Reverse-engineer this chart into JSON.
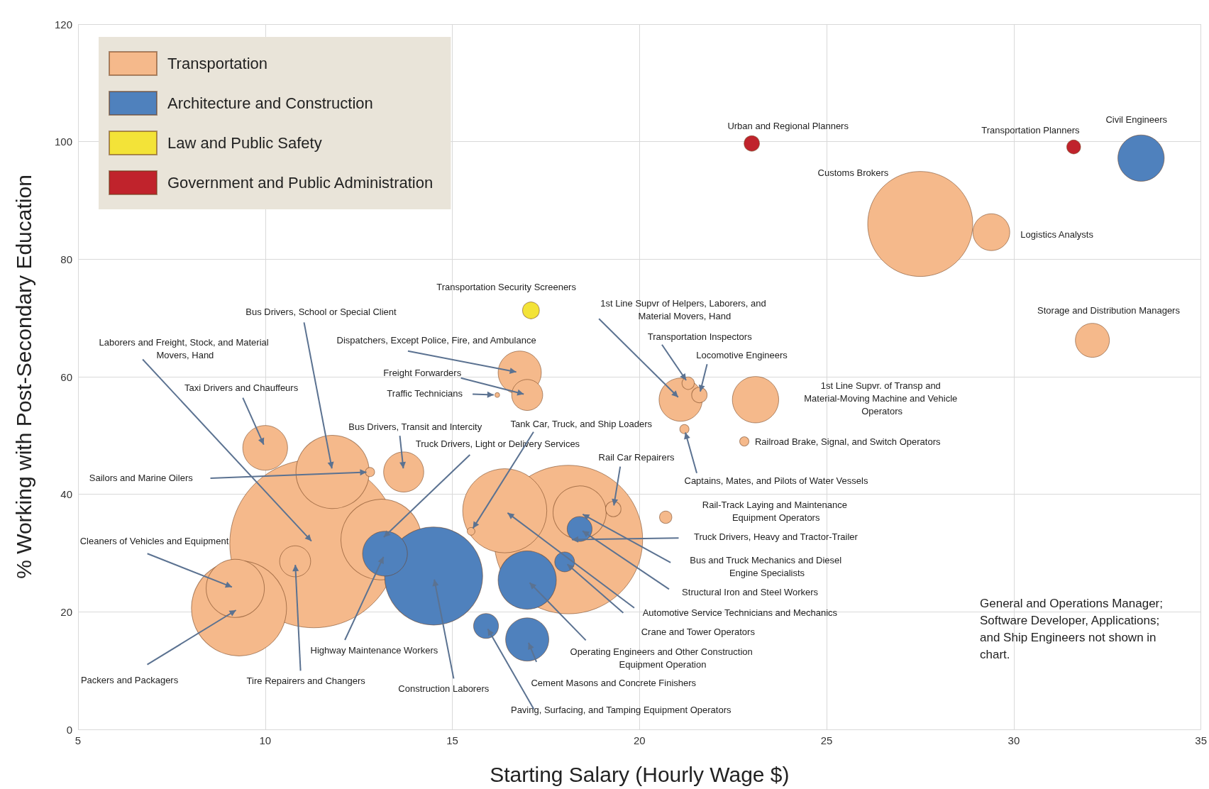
{
  "chart_data": {
    "type": "bubble",
    "xlabel": "Starting Salary (Hourly Wage $)",
    "ylabel": "% Working with Post-Secondary Education",
    "xlim": [
      5,
      35
    ],
    "xticks": [
      5,
      10,
      15,
      20,
      25,
      30,
      35
    ],
    "ylim": [
      0,
      120
    ],
    "yticks": [
      0,
      20,
      40,
      60,
      80,
      100,
      120
    ],
    "grid": true,
    "legend": "top left",
    "series": [
      {
        "name": "Transportation",
        "color": "#f5b98b",
        "x": [
          11.3,
          18.1,
          27.5,
          9.3,
          16.4,
          13.1,
          11.8,
          9.2,
          18.4,
          23.1,
          10.0,
          16.8,
          21.1,
          13.7,
          29.4,
          32.1,
          17.0,
          10.8,
          21.6,
          19.3,
          21.3,
          20.7,
          21.2,
          22.8,
          12.8,
          15.5,
          16.2
        ],
        "values": [
          31.6,
          32.3,
          86.0,
          20.6,
          37.2,
          32.3,
          43.8,
          24.0,
          36.9,
          56.1,
          47.9,
          60.7,
          56.1,
          43.8,
          84.6,
          66.2,
          56.9,
          28.6,
          56.9,
          37.5,
          58.9,
          36.1,
          51.1,
          49.0,
          43.8,
          33.7,
          56.9
        ],
        "sizes": [
          1,
          0.78,
          0.39,
          0.32,
          0.25,
          0.23,
          0.19,
          0.12,
          0.1,
          0.076,
          0.071,
          0.066,
          0.066,
          0.057,
          0.048,
          0.041,
          0.034,
          0.034,
          0.0084,
          0.0084,
          0.0054,
          0.0054,
          0.003,
          0.003,
          0.003,
          0.0021,
          0.0008
        ]
      },
      {
        "name": "Architecture and Construction",
        "color": "#4f81bd",
        "x": [
          14.5,
          17.0,
          33.4,
          13.2,
          17.0,
          18.4,
          15.9,
          18.0
        ],
        "values": [
          26.1,
          25.4,
          97.2,
          29.9,
          15.3,
          34.1,
          17.6,
          28.5
        ],
        "sizes": [
          0.34,
          0.12,
          0.076,
          0.071,
          0.066,
          0.022,
          0.022,
          0.014
        ]
      },
      {
        "name": "Law and Public Safety",
        "color": "#f3e338",
        "x": [
          17.1
        ],
        "values": [
          71.3
        ],
        "sizes": [
          0.01
        ]
      },
      {
        "name": "Government and Public Administration",
        "color": "#c0232c",
        "x": [
          23.0,
          31.6
        ],
        "values": [
          99.7,
          99.1
        ],
        "sizes": [
          0.0084,
          0.0068
        ]
      }
    ],
    "annotations": [
      {
        "text": "Urban and Regional Planners",
        "x": 23.0,
        "y": 99.7
      },
      {
        "text": "Transportation Planners",
        "x": 31.6,
        "y": 99.1
      },
      "Civil Engineers",
      "Customs Brokers",
      "Logistics Analysts",
      {
        "text": "Storage and Distribution Managers",
        "x": 32.1,
        "y": 66.2
      },
      {
        "text": "Transportation Security Screeners",
        "x": 17.1,
        "y": 71.3
      },
      {
        "text": "1st Line Supvr of Helpers, Laborers, and Material Movers, Hand",
        "x": 21.1,
        "y": 56.1
      },
      {
        "text": "Transportation Inspectors",
        "x": 21.3,
        "y": 58.9
      },
      {
        "text": "Locomotive Engineers",
        "x": 21.6,
        "y": 56.9
      },
      "1st Line Supvr. of Transp and Material-Moving Machine and Vehicle Operators",
      {
        "text": "Railroad Brake, Signal, and Switch Operators",
        "x": 22.8,
        "y": 49.0
      },
      {
        "text": "Captains, Mates, and Pilots of Water Vessels",
        "x": 21.2,
        "y": 51.1
      },
      "Rail-Track Laying and Maintenance Equipment Operators",
      "Truck Drivers, Heavy and Tractor-Trailer",
      "Bus and Truck Mechanics and Diesel Engine Specialists",
      "Structural Iron and Steel Workers",
      {
        "text": "Automotive Service Technicians and Mechanics",
        "x": 16.4,
        "y": 37.2
      },
      "Crane and Tower Operators",
      {
        "text": "Operating Engineers and Other Construction Equipment Operation",
        "x": 17.0,
        "y": 25.4
      },
      "Cement Masons and Concrete Finishers",
      {
        "text": "Paving, Surfacing, and Tamping Equipment Operators",
        "x": 15.9,
        "y": 17.6
      },
      {
        "text": "Construction Laborers",
        "x": 14.5,
        "y": 26.1
      },
      {
        "text": "Highway Maintenance Workers",
        "x": 13.2,
        "y": 29.9
      },
      {
        "text": "Tire Repairers and Changers",
        "x": 10.8,
        "y": 28.6
      },
      {
        "text": "Packers and Packagers",
        "x": 9.3,
        "y": 20.6
      },
      {
        "text": "Cleaners of Vehicles and Equipment",
        "x": 9.2,
        "y": 24.0
      },
      "Sailors and Marine Oilers",
      {
        "text": "Laborers and Freight, Stock, and Material Movers, Hand",
        "x": 11.3,
        "y": 31.6
      },
      {
        "text": "Taxi Drivers and Chauffeurs",
        "x": 10.0,
        "y": 47.9
      },
      {
        "text": "Bus Drivers, School or Special Client",
        "x": 11.8,
        "y": 43.8
      },
      {
        "text": "Bus Drivers, Transit and Intercity",
        "x": 13.7,
        "y": 43.8
      },
      {
        "text": "Truck Drivers, Light or Delivery Services",
        "x": 13.1,
        "y": 32.3
      },
      {
        "text": "Tank Car, Truck, and Ship Loaders",
        "x": 15.5,
        "y": 33.7
      },
      {
        "text": "Rail Car Repairers",
        "x": 19.3,
        "y": 37.5
      },
      {
        "text": "Dispatchers, Except Police, Fire, and Ambulance",
        "x": 16.8,
        "y": 60.7
      },
      {
        "text": "Freight Forwarders",
        "x": 17.0,
        "y": 56.9
      },
      {
        "text": "Traffic Technicians",
        "x": 16.2,
        "y": 56.9
      },
      "General and Operations Manager; Software Developer, Applications; and Ship Engineers not shown in chart."
    ]
  }
}
